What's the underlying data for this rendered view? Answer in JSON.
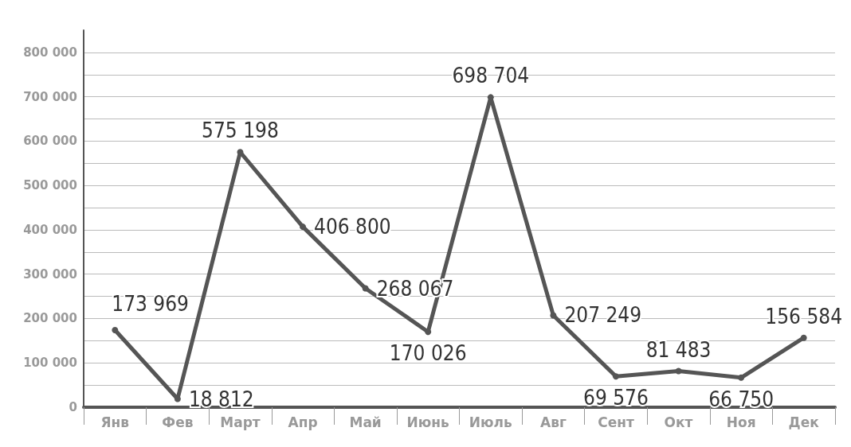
{
  "chart_data": {
    "type": "line",
    "categories": [
      "Янв",
      "Фев",
      "Март",
      "Апр",
      "Май",
      "Июнь",
      "Июль",
      "Авг",
      "Сент",
      "Окт",
      "Ноя",
      "Дек"
    ],
    "series": [
      {
        "color": "#555555",
        "values": [
          173969,
          18812,
          575198,
          406800,
          268067,
          170026,
          698704,
          207249,
          69576,
          81483,
          66750,
          156584
        ],
        "value_labels": [
          "173 969",
          "18 812",
          "575 198",
          "406 800",
          "268 067",
          "170 026",
          "698 704",
          "207 249",
          "69 576",
          "81 483",
          "66 750",
          "156 584"
        ]
      }
    ],
    "ylim": [
      0,
      850000
    ],
    "yticks": [
      {
        "value": 0,
        "label": "0"
      },
      {
        "value": 50000,
        "label": null
      },
      {
        "value": 100000,
        "label": "100 000"
      },
      {
        "value": 150000,
        "label": null
      },
      {
        "value": 200000,
        "label": "200 000"
      },
      {
        "value": 250000,
        "label": null
      },
      {
        "value": 300000,
        "label": "300 000"
      },
      {
        "value": 350000,
        "label": null
      },
      {
        "value": 400000,
        "label": "400 000"
      },
      {
        "value": 450000,
        "label": null
      },
      {
        "value": 500000,
        "label": "500 000"
      },
      {
        "value": 550000,
        "label": null
      },
      {
        "value": 600000,
        "label": "600 000"
      },
      {
        "value": 650000,
        "label": null
      },
      {
        "value": 700000,
        "label": "700 000"
      },
      {
        "value": 750000,
        "label": null
      },
      {
        "value": 800000,
        "label": "800 000"
      }
    ],
    "grid": "y",
    "marker": "circle",
    "line_style": "solid"
  }
}
